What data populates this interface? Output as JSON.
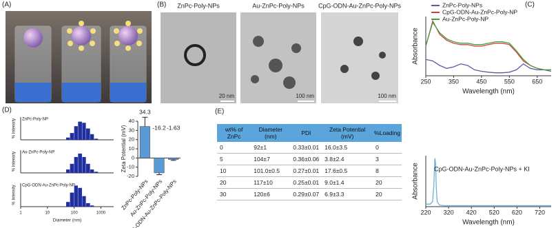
{
  "panels": {
    "a": "(A)",
    "b": "(B)",
    "c": "(C)",
    "d": "(D)",
    "e": "(E)"
  },
  "tem": {
    "titles": [
      "ZnPc-Poly-NPs",
      "Au-ZnPc-Poly-NPs",
      "CpG-ODN-Au-ZnPc-Poly-NPs"
    ],
    "scale_bars": [
      "20 nm",
      "100 nm",
      "100 nm"
    ]
  },
  "table": {
    "header": [
      "wt% of ZnPc",
      "Diameter (nm)",
      "PDI",
      "Zeta Potential (mV)",
      "%Loading"
    ],
    "rows": [
      [
        "0",
        "92±1",
        "0.33±0.01",
        "16.0±3.5",
        "0"
      ],
      [
        "5",
        "104±7",
        "0.36±0.06",
        "3.8±2.4",
        "3"
      ],
      [
        "10",
        "101.0±0.5",
        "0.27±0.01",
        "17.6±0.5",
        "8"
      ],
      [
        "20",
        "117±10",
        "0.25±0.01",
        "9.0±1.4",
        "20"
      ],
      [
        "30",
        "120±6",
        "0.29±0.07",
        "6.9±3.3",
        "20"
      ]
    ]
  },
  "chart_data": [
    {
      "type": "line",
      "ylabel": "Absorbance",
      "xlabel": "Wavelength (nm)",
      "xlim": [
        250,
        700
      ],
      "ylim": [
        0,
        2
      ],
      "xticks": [
        250,
        350,
        450,
        550,
        650
      ],
      "legend": "upper right",
      "x": [
        250,
        275,
        300,
        325,
        350,
        375,
        400,
        425,
        450,
        475,
        500,
        525,
        550,
        575,
        600,
        625,
        650,
        675,
        700
      ],
      "series": [
        {
          "name": "ZnPc-Poly-NPs",
          "color": "#5a5aa0",
          "values": [
            0.55,
            0.5,
            0.35,
            0.25,
            0.3,
            0.4,
            0.35,
            0.2,
            0.15,
            0.12,
            0.1,
            0.1,
            0.12,
            0.2,
            0.4,
            0.25,
            0.2,
            0.2,
            0.15
          ]
        },
        {
          "name": "CpG-ODN-Au-ZnPc-Poly-NP",
          "color": "#d04040",
          "values": [
            1.0,
            1.85,
            1.4,
            1.2,
            1.1,
            1.05,
            1.05,
            1.0,
            1.0,
            1.05,
            1.1,
            1.1,
            1.05,
            0.8,
            0.5,
            0.35,
            0.25,
            0.2,
            0.2
          ]
        },
        {
          "name": "Au-ZnPc-Poly-NP",
          "color": "#40a040",
          "values": [
            1.0,
            1.8,
            1.45,
            1.25,
            1.15,
            1.1,
            1.1,
            1.05,
            1.05,
            1.1,
            1.15,
            1.15,
            1.1,
            0.85,
            0.55,
            0.35,
            0.25,
            0.2,
            0.2
          ]
        }
      ]
    },
    {
      "type": "histogram",
      "title": "ZnPc-Poly-NP",
      "ylabel": "% Intensity",
      "log_x": true,
      "xlim": [
        1,
        3000
      ],
      "ylim": [
        0,
        20
      ],
      "color": "#1f2f9f",
      "bins": [
        50,
        70,
        100,
        140,
        200,
        280,
        400,
        560,
        800
      ],
      "values": [
        2,
        6,
        12,
        16,
        15,
        10,
        5,
        1
      ]
    },
    {
      "type": "histogram",
      "title": "Au-ZnPc-Poly-NP",
      "ylabel": "% Intensity",
      "log_x": true,
      "xlim": [
        1,
        3000
      ],
      "ylim": [
        0,
        20
      ],
      "color": "#1f2f9f",
      "bins": [
        50,
        70,
        100,
        140,
        200,
        280,
        400,
        560,
        800
      ],
      "values": [
        3,
        8,
        14,
        17,
        14,
        8,
        3,
        1
      ]
    },
    {
      "type": "histogram",
      "title": "CpG-ODN-Au-ZnPc-Poly-NP",
      "ylabel": "% Intensity",
      "xlabel": "Diameter (nm)",
      "log_x": true,
      "xlim": [
        1,
        3000
      ],
      "ylim": [
        0,
        20
      ],
      "color": "#1f2f9f",
      "xticks": [
        1,
        10,
        100,
        1000
      ],
      "bins": [
        50,
        70,
        100,
        140,
        200,
        280,
        400,
        560,
        800
      ],
      "values": [
        4,
        12,
        18,
        16,
        9,
        3,
        1,
        0
      ]
    },
    {
      "type": "bar",
      "ylabel": "Zeta Potential (mV)",
      "ylim": [
        -20,
        40
      ],
      "yticks": [
        -20,
        -10,
        0,
        10,
        20,
        30,
        40
      ],
      "color": "#5b9bd5",
      "categories": [
        "ZnPc-Poly-NPs",
        "Au-ZnPc-Poly-NPs",
        "CpG-ODN-Au-ZnPc-Poly-NPs"
      ],
      "values": [
        34.3,
        -16.2,
        -1.63
      ],
      "errors": [
        10,
        2,
        1
      ]
    },
    {
      "type": "line",
      "title": "CpG-ODN-Au-ZnPc-Poly-NPs + KI",
      "ylabel": "Absorbance",
      "xlabel": "Wavelength (nm)",
      "xlim": [
        220,
        770
      ],
      "ylim": [
        0,
        1
      ],
      "xticks": [
        220,
        320,
        420,
        520,
        620,
        720
      ],
      "color": "#6fb0d6",
      "x": [
        220,
        240,
        250,
        255,
        260,
        263,
        266,
        270,
        280,
        300,
        350,
        420,
        520,
        620,
        720,
        770
      ],
      "values": [
        0.05,
        0.05,
        0.1,
        0.4,
        0.95,
        0.85,
        0.4,
        0.1,
        0.03,
        0.02,
        0.02,
        0.02,
        0.02,
        0.02,
        0.02,
        0.02
      ]
    }
  ]
}
